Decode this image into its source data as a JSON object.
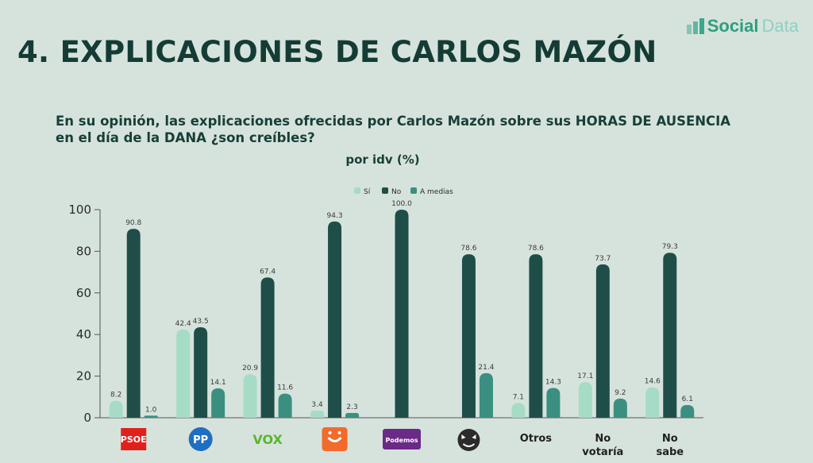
{
  "brand": {
    "name_part1": "Social",
    "name_part2": "Data"
  },
  "title": "4. EXPLICACIONES DE CARLOS MAZÓN",
  "question": "En su opinión, las explicaciones ofrecidas por Carlos Mazón sobre sus HORAS DE AUSENCIA en el día de la DANA ¿son creíbles?",
  "subtitle": "por idv (%)",
  "colors": {
    "si": "#a6dcc5",
    "no": "#1f4e49",
    "a_medias": "#3a8f80"
  },
  "chart_data": {
    "type": "bar",
    "title": "4. EXPLICACIONES DE CARLOS MAZÓN",
    "subtitle": "por idv (%)",
    "categories": [
      "PSOE",
      "PP",
      "VOX",
      "Compromís",
      "Podemos",
      "Se Acabó La Fiesta",
      "Otros",
      "No votaría",
      "No sabe"
    ],
    "category_display": [
      {
        "kind": "logo",
        "text": "PSOE",
        "color": "#e0211b"
      },
      {
        "kind": "logo",
        "text": "PP",
        "color": "#1e6fc2"
      },
      {
        "kind": "logo",
        "text": "VOX",
        "color": "#5bb52e"
      },
      {
        "kind": "logo",
        "text": "",
        "color": "#f26a2c"
      },
      {
        "kind": "logo",
        "text": "Podemos",
        "color": "#6b2a88"
      },
      {
        "kind": "logo",
        "text": "",
        "color": "#2b2b2b"
      },
      {
        "kind": "text",
        "lines": [
          "Otros"
        ]
      },
      {
        "kind": "text",
        "lines": [
          "No",
          "votaría"
        ]
      },
      {
        "kind": "text",
        "lines": [
          "No",
          "sabe"
        ]
      }
    ],
    "series": [
      {
        "name": "Sí",
        "values": [
          8.2,
          42.4,
          20.9,
          3.4,
          null,
          null,
          7.1,
          17.1,
          14.6
        ]
      },
      {
        "name": "No",
        "values": [
          90.8,
          43.5,
          67.4,
          94.3,
          100.0,
          78.6,
          78.6,
          73.7,
          79.3
        ]
      },
      {
        "name": "A medias",
        "values": [
          1.0,
          14.1,
          11.6,
          2.3,
          null,
          21.4,
          14.3,
          9.2,
          6.1
        ]
      }
    ],
    "y_ticks": [
      0,
      20,
      40,
      60,
      80,
      100
    ],
    "ylim": [
      0,
      100
    ],
    "xlabel": "",
    "ylabel": "",
    "legend_position": "top-center",
    "grid": false
  }
}
